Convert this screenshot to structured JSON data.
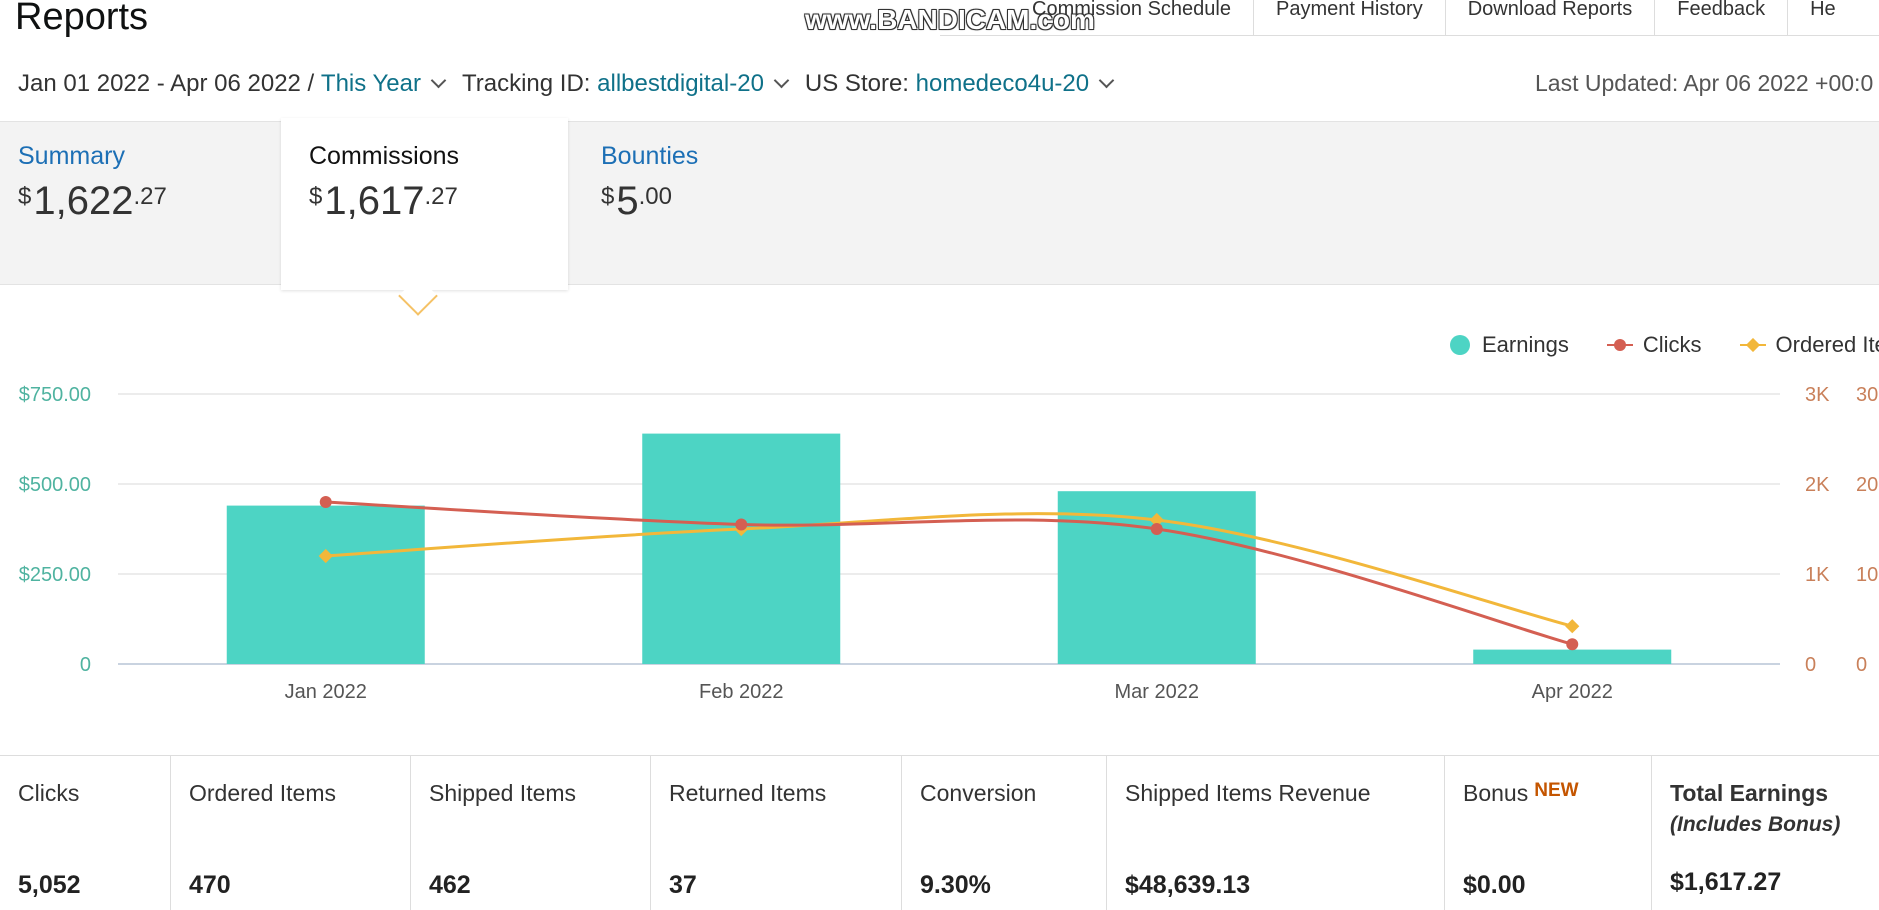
{
  "header": {
    "title": "Reports",
    "nav": [
      "Commission Schedule",
      "Payment History",
      "Download Reports",
      "Feedback",
      "He"
    ],
    "watermark": "www.BANDICAM.com"
  },
  "filters": {
    "date_range": "Jan 01 2022 - Apr 06 2022 /",
    "period": "This Year",
    "tracking_label": "Tracking ID:",
    "tracking_id": "allbestdigital-20",
    "store_label": "US Store:",
    "store": "homedeco4u-20",
    "last_updated": "Last Updated: Apr 06 2022 +00:0"
  },
  "summary": {
    "tiles": [
      {
        "label": "Summary",
        "dollar": "$",
        "whole": "1,622",
        "cents": ".27"
      },
      {
        "label": "Commissions",
        "dollar": "$",
        "whole": "1,617",
        "cents": ".27"
      },
      {
        "label": "Bounties",
        "dollar": "$",
        "whole": "5",
        "cents": ".00"
      }
    ]
  },
  "legend": {
    "earnings": "Earnings",
    "clicks": "Clicks",
    "ordered": "Ordered Item"
  },
  "colors": {
    "earnings": "#4dd4c4",
    "clicks": "#d45f52",
    "ordered": "#f2b73a",
    "left_axis": "#4fb3a0",
    "right_axis": "#c9805a"
  },
  "chart_data": {
    "type": "bar",
    "categories": [
      "Jan 2022",
      "Feb 2022",
      "Mar 2022",
      "Apr 2022"
    ],
    "series": [
      {
        "name": "Earnings",
        "type": "bar",
        "axis": "left",
        "values": [
          440,
          640,
          480,
          40
        ]
      },
      {
        "name": "Clicks",
        "type": "line",
        "axis": "right1",
        "values": [
          1800,
          1550,
          1500,
          220
        ]
      },
      {
        "name": "Ordered Item",
        "type": "line",
        "axis": "right2",
        "values": [
          120,
          150,
          160,
          42
        ]
      }
    ],
    "left_axis": {
      "ticks": [
        "$750.00",
        "$500.00",
        "$250.00",
        "0"
      ],
      "ylim": [
        0,
        750
      ]
    },
    "right_axis_1": {
      "ticks": [
        "3K",
        "2K",
        "1K",
        "0"
      ],
      "ylim": [
        0,
        3000
      ]
    },
    "right_axis_2": {
      "ticks": [
        "30",
        "20",
        "10",
        "0"
      ],
      "ylim": [
        0,
        300
      ]
    },
    "grid": true,
    "legend_position": "top-right"
  },
  "metrics": [
    {
      "label": "Clicks",
      "value": "5,052"
    },
    {
      "label": "Ordered Items",
      "value": "470"
    },
    {
      "label": "Shipped Items",
      "value": "462"
    },
    {
      "label": "Returned Items",
      "value": "37"
    },
    {
      "label": "Conversion",
      "value": "9.30%"
    },
    {
      "label": "Shipped Items Revenue",
      "value": "$48,639.13"
    },
    {
      "label": "Bonus",
      "badge": "NEW",
      "value": "$0.00"
    },
    {
      "label": "Total Earnings",
      "sub": "(Includes Bonus)",
      "value": "$1,617.27"
    }
  ]
}
